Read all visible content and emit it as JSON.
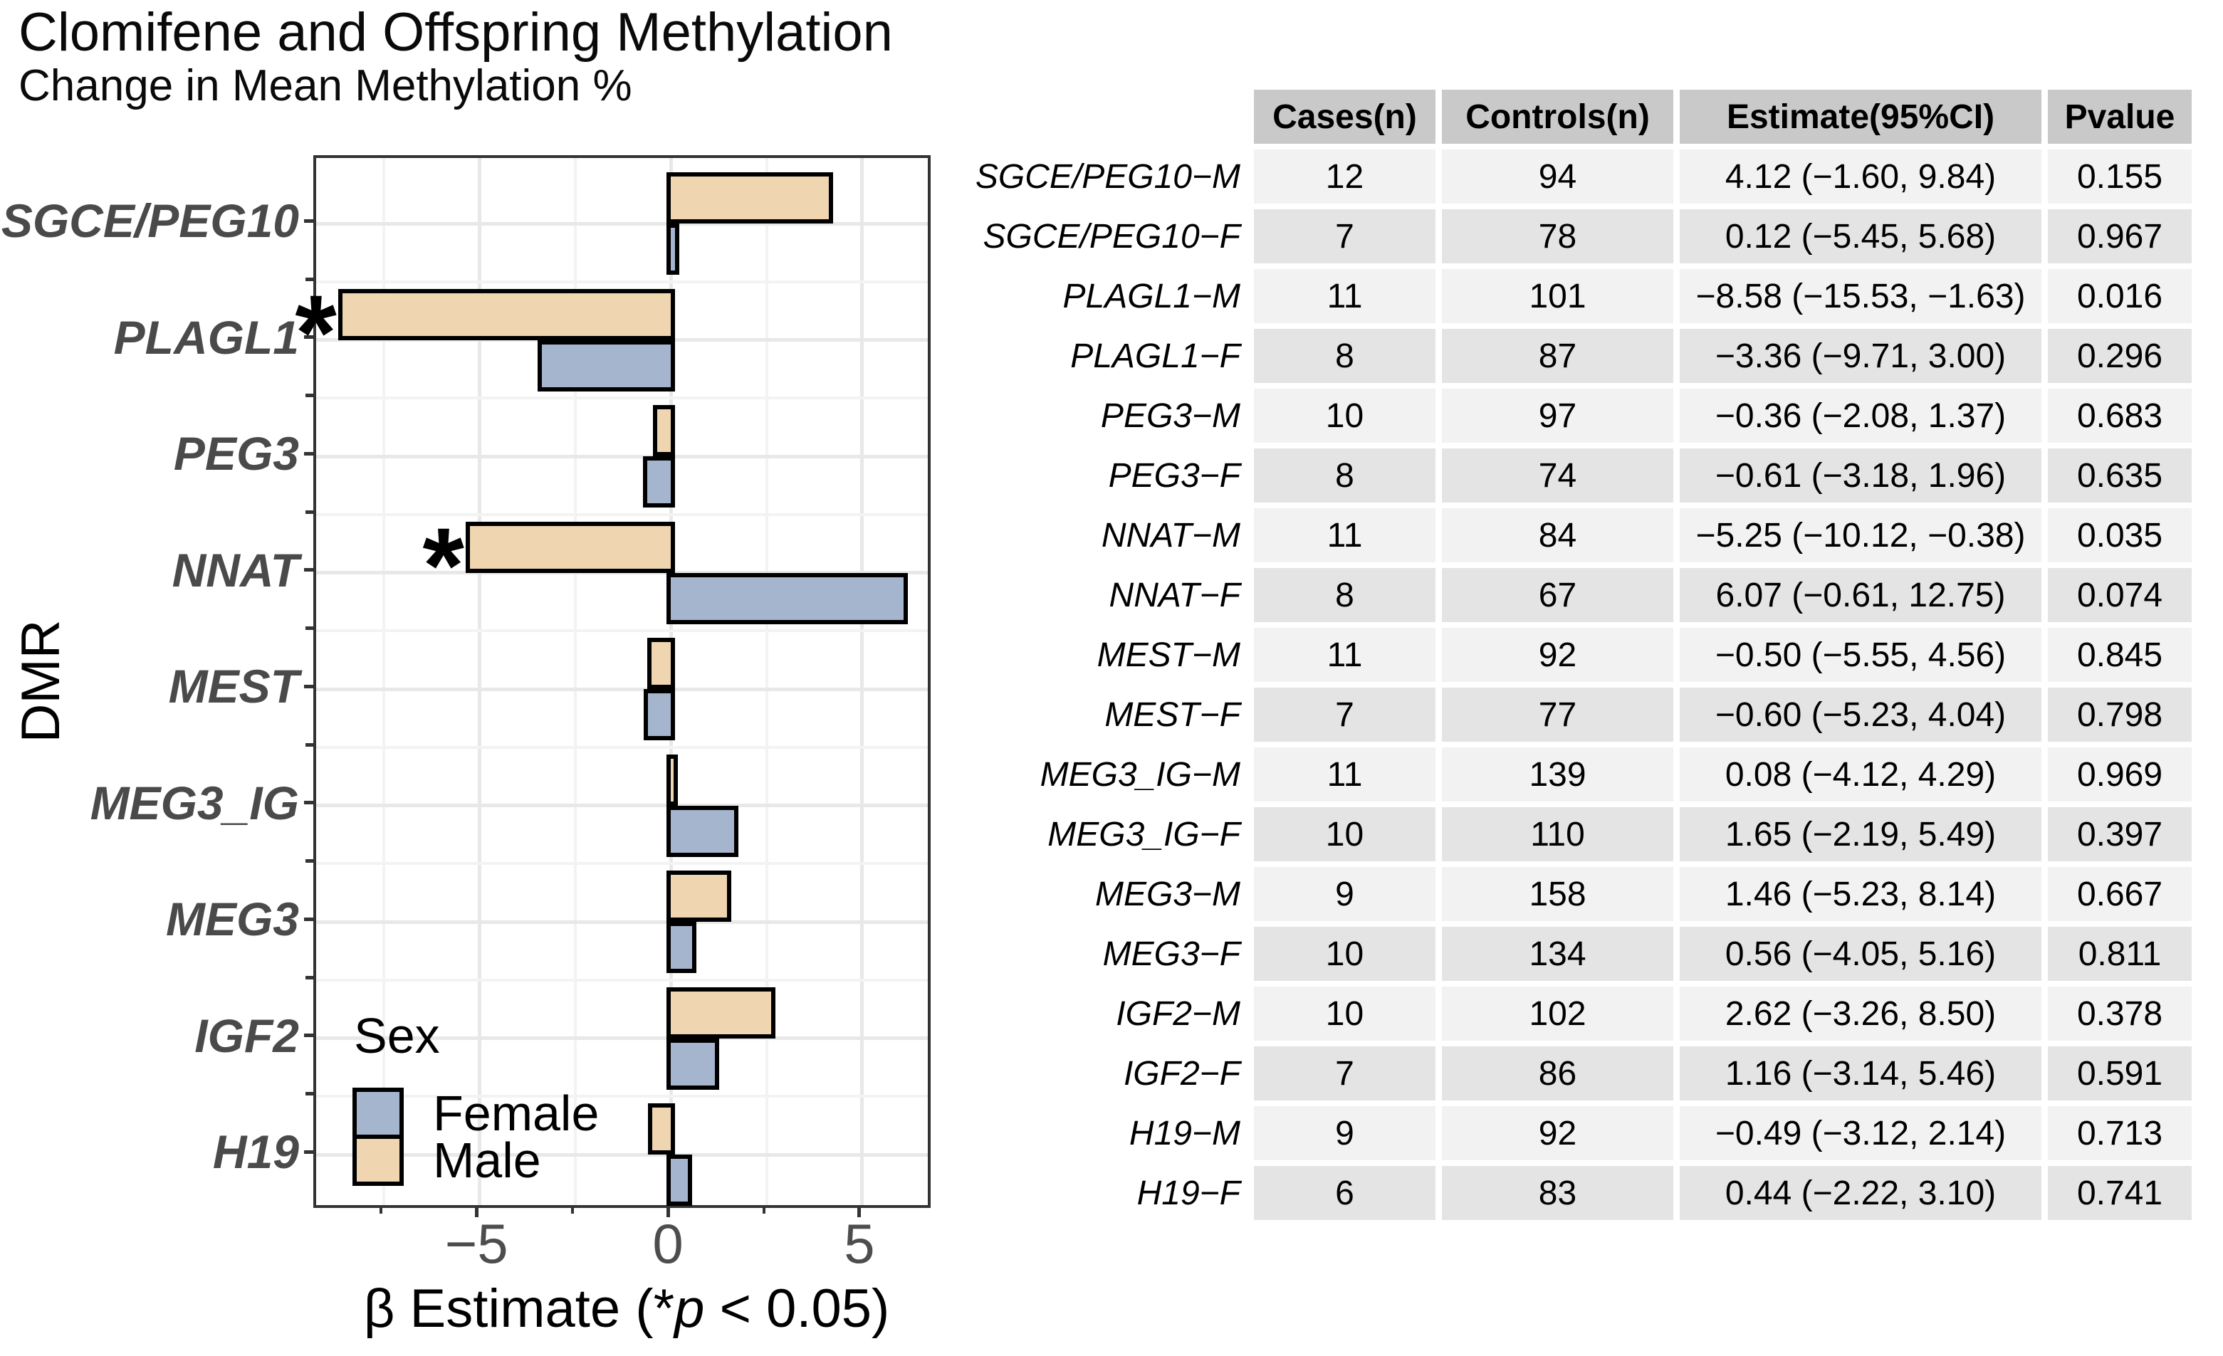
{
  "title": "Clomifene and Offspring Methylation",
  "subtitle": "Change in Mean Methylation %",
  "chart_data": {
    "type": "bar",
    "orientation": "horizontal",
    "title": "Clomifene and Offspring Methylation",
    "subtitle": "Change in Mean Methylation %",
    "xlabel": "β Estimate (*p < 0.05)",
    "xlabel_parts": {
      "pre": "β Estimate (*",
      "italic": "p",
      "post": " < 0.05)"
    },
    "ylabel": "DMR",
    "xlim": [
      -9.26,
      6.86
    ],
    "x_ticks": [
      {
        "value": -5,
        "label": "−5"
      },
      {
        "value": 0,
        "label": "0"
      },
      {
        "value": 5,
        "label": "5"
      }
    ],
    "x_minor_ticks": [
      -7.5,
      -2.5,
      2.5
    ],
    "grid": true,
    "categories": [
      "SGCE/PEG10",
      "PLAGL1",
      "PEG3",
      "NNAT",
      "MEST",
      "MEG3_IG",
      "MEG3",
      "IGF2",
      "H19"
    ],
    "series": [
      {
        "name": "Male",
        "color": "#efd5b0",
        "values": [
          4.12,
          -8.58,
          -0.36,
          -5.25,
          -0.5,
          0.08,
          1.46,
          2.62,
          -0.49
        ],
        "significant": [
          false,
          true,
          false,
          true,
          false,
          false,
          false,
          false,
          false
        ]
      },
      {
        "name": "Female",
        "color": "#a5b5ce",
        "values": [
          0.12,
          -3.36,
          -0.61,
          6.07,
          -0.6,
          1.65,
          0.56,
          1.16,
          0.44
        ],
        "significant": [
          false,
          false,
          false,
          false,
          false,
          false,
          false,
          false,
          false
        ]
      }
    ],
    "legend": {
      "title": "Sex",
      "entries": [
        {
          "label": "Female",
          "color": "#a5b5ce"
        },
        {
          "label": "Male",
          "color": "#efd5b0"
        }
      ],
      "position": "bottom-left"
    },
    "significance_marker": "*"
  },
  "table": {
    "columns": [
      "Cases(n)",
      "Controls(n)",
      "Estimate(95%CI)",
      "Pvalue"
    ],
    "rows": [
      {
        "label": "SGCE/PEG10−M",
        "cases": "12",
        "controls": "94",
        "estimate": "4.12 (−1.60, 9.84)",
        "pvalue": "0.155"
      },
      {
        "label": "SGCE/PEG10−F",
        "cases": "7",
        "controls": "78",
        "estimate": "0.12 (−5.45, 5.68)",
        "pvalue": "0.967"
      },
      {
        "label": "PLAGL1−M",
        "cases": "11",
        "controls": "101",
        "estimate": "−8.58 (−15.53, −1.63)",
        "pvalue": "0.016"
      },
      {
        "label": "PLAGL1−F",
        "cases": "8",
        "controls": "87",
        "estimate": "−3.36 (−9.71, 3.00)",
        "pvalue": "0.296"
      },
      {
        "label": "PEG3−M",
        "cases": "10",
        "controls": "97",
        "estimate": "−0.36 (−2.08, 1.37)",
        "pvalue": "0.683"
      },
      {
        "label": "PEG3−F",
        "cases": "8",
        "controls": "74",
        "estimate": "−0.61 (−3.18, 1.96)",
        "pvalue": "0.635"
      },
      {
        "label": "NNAT−M",
        "cases": "11",
        "controls": "84",
        "estimate": "−5.25 (−10.12, −0.38)",
        "pvalue": "0.035"
      },
      {
        "label": "NNAT−F",
        "cases": "8",
        "controls": "67",
        "estimate": "6.07 (−0.61, 12.75)",
        "pvalue": "0.074"
      },
      {
        "label": "MEST−M",
        "cases": "11",
        "controls": "92",
        "estimate": "−0.50 (−5.55, 4.56)",
        "pvalue": "0.845"
      },
      {
        "label": "MEST−F",
        "cases": "7",
        "controls": "77",
        "estimate": "−0.60 (−5.23, 4.04)",
        "pvalue": "0.798"
      },
      {
        "label": "MEG3_IG−M",
        "cases": "11",
        "controls": "139",
        "estimate": "0.08 (−4.12, 4.29)",
        "pvalue": "0.969"
      },
      {
        "label": "MEG3_IG−F",
        "cases": "10",
        "controls": "110",
        "estimate": "1.65 (−2.19, 5.49)",
        "pvalue": "0.397"
      },
      {
        "label": "MEG3−M",
        "cases": "9",
        "controls": "158",
        "estimate": "1.46 (−5.23, 8.14)",
        "pvalue": "0.667"
      },
      {
        "label": "MEG3−F",
        "cases": "10",
        "controls": "134",
        "estimate": "0.56 (−4.05, 5.16)",
        "pvalue": "0.811"
      },
      {
        "label": "IGF2−M",
        "cases": "10",
        "controls": "102",
        "estimate": "2.62 (−3.26, 8.50)",
        "pvalue": "0.378"
      },
      {
        "label": "IGF2−F",
        "cases": "7",
        "controls": "86",
        "estimate": "1.16 (−3.14, 5.46)",
        "pvalue": "0.591"
      },
      {
        "label": "H19−M",
        "cases": "9",
        "controls": "92",
        "estimate": "−0.49 (−3.12, 2.14)",
        "pvalue": "0.713"
      },
      {
        "label": "H19−F",
        "cases": "6",
        "controls": "83",
        "estimate": "0.44 (−2.22, 3.10)",
        "pvalue": "0.741"
      }
    ]
  },
  "colors": {
    "male": "#efd5b0",
    "female": "#a5b5ce",
    "bar_stroke": "#000000",
    "panel_border": "#333333",
    "grid_major": "#e8e8e8",
    "grid_minor": "#f3f3f3",
    "tick": "#333333",
    "axis_text": "#4d4d4d",
    "category_text": "#4a4a4a",
    "table_header_bg": "#c9c9c9",
    "table_row_light": "#f2f2f2",
    "table_row_dark": "#e4e4e4"
  }
}
